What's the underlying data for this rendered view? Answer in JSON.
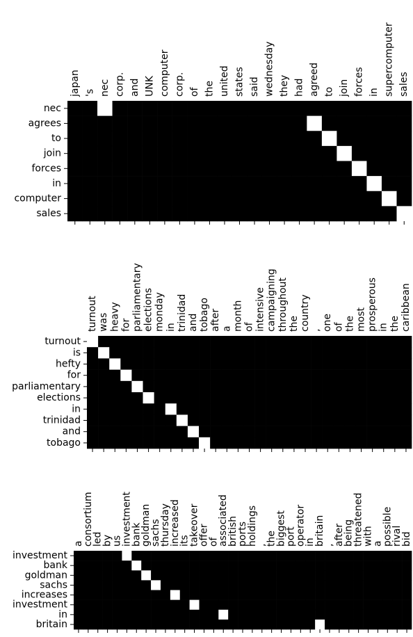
{
  "chart_data": [
    {
      "type": "heatmap",
      "x_categories": [
        "japan",
        "'s",
        "nec",
        "corp.",
        "and",
        "UNK",
        "computer",
        "corp.",
        "of",
        "the",
        "united",
        "states",
        "said",
        "wednesday",
        "they",
        "had",
        "agreed",
        "to",
        "join",
        "forces",
        "in",
        "supercomputer",
        "sales"
      ],
      "y_categories": [
        "nec",
        "agrees",
        "to",
        "join",
        "forces",
        "in",
        "computer",
        "sales"
      ],
      "colors": [
        "#000000",
        "#ffffff"
      ],
      "values": [
        [
          0,
          0,
          1,
          0,
          0,
          0,
          0,
          0,
          0,
          0,
          0,
          0,
          0,
          0,
          0,
          0,
          0,
          0,
          0,
          0,
          0,
          0,
          0
        ],
        [
          0,
          0,
          0,
          0,
          0,
          0,
          0,
          0,
          0,
          0,
          0,
          0,
          0,
          0,
          0,
          0,
          1,
          0,
          0,
          0,
          0,
          0,
          0
        ],
        [
          0,
          0,
          0,
          0,
          0,
          0,
          0,
          0,
          0,
          0,
          0,
          0,
          0,
          0,
          0,
          0,
          0,
          1,
          0,
          0,
          0,
          0,
          0
        ],
        [
          0,
          0,
          0,
          0,
          0,
          0,
          0,
          0,
          0,
          0,
          0,
          0,
          0,
          0,
          0,
          0,
          0,
          0,
          1,
          0,
          0,
          0,
          0
        ],
        [
          0,
          0,
          0,
          0,
          0,
          0,
          0,
          0,
          0,
          0,
          0,
          0,
          0,
          0,
          0,
          0,
          0,
          0,
          0,
          1,
          0,
          0,
          0
        ],
        [
          0,
          0,
          0,
          0,
          0,
          0,
          0,
          0,
          0,
          0,
          0,
          0,
          0,
          0,
          0,
          0,
          0,
          0,
          0,
          0,
          1,
          0,
          0
        ],
        [
          0,
          0,
          0,
          0,
          0,
          0,
          0,
          0,
          0,
          0,
          0,
          0,
          0,
          0,
          0,
          0,
          0,
          0,
          0,
          0,
          0,
          1,
          0
        ],
        [
          0,
          0,
          0,
          0,
          0,
          0,
          0,
          0,
          0,
          0,
          0,
          0,
          0,
          0,
          0,
          0,
          0,
          0,
          0,
          0,
          0,
          0,
          1
        ]
      ]
    },
    {
      "type": "heatmap",
      "x_categories": [
        "turnout",
        "was",
        "heavy",
        "for",
        "parliamentary",
        "elections",
        "monday",
        "in",
        "trinidad",
        "and",
        "tobago",
        "after",
        "a",
        "month",
        "of",
        "intensive",
        "campaigning",
        "throughout",
        "the",
        "country",
        ",",
        "one",
        "of",
        "the",
        "most",
        "prosperous",
        "in",
        "the",
        "caribbean"
      ],
      "y_categories": [
        "turnout",
        "is",
        "hefty",
        "for",
        "parliamentary",
        "elections",
        "in",
        "trinidad",
        "and",
        "tobago"
      ],
      "colors": [
        "#000000",
        "#ffffff"
      ],
      "values": [
        [
          1,
          0,
          0,
          0,
          0,
          0,
          0,
          0,
          0,
          0,
          0,
          0,
          0,
          0,
          0,
          0,
          0,
          0,
          0,
          0,
          0,
          0,
          0,
          0,
          0,
          0,
          0,
          0,
          0
        ],
        [
          0,
          1,
          0,
          0,
          0,
          0,
          0,
          0,
          0,
          0,
          0,
          0,
          0,
          0,
          0,
          0,
          0,
          0,
          0,
          0,
          0,
          0,
          0,
          0,
          0,
          0,
          0,
          0,
          0
        ],
        [
          0,
          0,
          1,
          0,
          0,
          0,
          0,
          0,
          0,
          0,
          0,
          0,
          0,
          0,
          0,
          0,
          0,
          0,
          0,
          0,
          0,
          0,
          0,
          0,
          0,
          0,
          0,
          0,
          0
        ],
        [
          0,
          0,
          0,
          1,
          0,
          0,
          0,
          0,
          0,
          0,
          0,
          0,
          0,
          0,
          0,
          0,
          0,
          0,
          0,
          0,
          0,
          0,
          0,
          0,
          0,
          0,
          0,
          0,
          0
        ],
        [
          0,
          0,
          0,
          0,
          1,
          0,
          0,
          0,
          0,
          0,
          0,
          0,
          0,
          0,
          0,
          0,
          0,
          0,
          0,
          0,
          0,
          0,
          0,
          0,
          0,
          0,
          0,
          0,
          0
        ],
        [
          0,
          0,
          0,
          0,
          0,
          1,
          0,
          0,
          0,
          0,
          0,
          0,
          0,
          0,
          0,
          0,
          0,
          0,
          0,
          0,
          0,
          0,
          0,
          0,
          0,
          0,
          0,
          0,
          0
        ],
        [
          0,
          0,
          0,
          0,
          0,
          0,
          0,
          1,
          0,
          0,
          0,
          0,
          0,
          0,
          0,
          0,
          0,
          0,
          0,
          0,
          0,
          0,
          0,
          0,
          0,
          0,
          0,
          0,
          0
        ],
        [
          0,
          0,
          0,
          0,
          0,
          0,
          0,
          0,
          1,
          0,
          0,
          0,
          0,
          0,
          0,
          0,
          0,
          0,
          0,
          0,
          0,
          0,
          0,
          0,
          0,
          0,
          0,
          0,
          0
        ],
        [
          0,
          0,
          0,
          0,
          0,
          0,
          0,
          0,
          0,
          1,
          0,
          0,
          0,
          0,
          0,
          0,
          0,
          0,
          0,
          0,
          0,
          0,
          0,
          0,
          0,
          0,
          0,
          0,
          0
        ],
        [
          0,
          0,
          0,
          0,
          0,
          0,
          0,
          0,
          0,
          0,
          1,
          0,
          0,
          0,
          0,
          0,
          0,
          0,
          0,
          0,
          0,
          0,
          0,
          0,
          0,
          0,
          0,
          0,
          0
        ]
      ]
    },
    {
      "type": "heatmap",
      "x_categories": [
        "a",
        "consortium",
        "led",
        "by",
        "us",
        "investment",
        "bank",
        "goldman",
        "sachs",
        "thursday",
        "increased",
        "its",
        "takeover",
        "offer",
        "of",
        "associated",
        "british",
        "ports",
        "holdings",
        ",",
        "the",
        "biggest",
        "port",
        "operator",
        "in",
        "britain",
        ",",
        "after",
        "being",
        "threatened",
        "with",
        "a",
        "possible",
        "rival",
        "bid"
      ],
      "y_categories": [
        "investment",
        "bank",
        "goldman",
        "sachs",
        "increases",
        "investment",
        "in",
        "britain"
      ],
      "colors": [
        "#000000",
        "#ffffff"
      ],
      "values": [
        [
          0,
          0,
          0,
          0,
          0,
          1,
          0,
          0,
          0,
          0,
          0,
          0,
          0,
          0,
          0,
          0,
          0,
          0,
          0,
          0,
          0,
          0,
          0,
          0,
          0,
          0,
          0,
          0,
          0,
          0,
          0,
          0,
          0,
          0,
          0
        ],
        [
          0,
          0,
          0,
          0,
          0,
          0,
          1,
          0,
          0,
          0,
          0,
          0,
          0,
          0,
          0,
          0,
          0,
          0,
          0,
          0,
          0,
          0,
          0,
          0,
          0,
          0,
          0,
          0,
          0,
          0,
          0,
          0,
          0,
          0,
          0
        ],
        [
          0,
          0,
          0,
          0,
          0,
          0,
          0,
          1,
          0,
          0,
          0,
          0,
          0,
          0,
          0,
          0,
          0,
          0,
          0,
          0,
          0,
          0,
          0,
          0,
          0,
          0,
          0,
          0,
          0,
          0,
          0,
          0,
          0,
          0,
          0
        ],
        [
          0,
          0,
          0,
          0,
          0,
          0,
          0,
          0,
          1,
          0,
          0,
          0,
          0,
          0,
          0,
          0,
          0,
          0,
          0,
          0,
          0,
          0,
          0,
          0,
          0,
          0,
          0,
          0,
          0,
          0,
          0,
          0,
          0,
          0,
          0
        ],
        [
          0,
          0,
          0,
          0,
          0,
          0,
          0,
          0,
          0,
          0,
          1,
          0,
          0,
          0,
          0,
          0,
          0,
          0,
          0,
          0,
          0,
          0,
          0,
          0,
          0,
          0,
          0,
          0,
          0,
          0,
          0,
          0,
          0,
          0,
          0
        ],
        [
          0,
          0,
          0,
          0,
          0,
          0,
          0,
          0,
          0,
          0,
          0,
          0,
          1,
          0,
          0,
          0,
          0,
          0,
          0,
          0,
          0,
          0,
          0,
          0,
          0,
          0,
          0,
          0,
          0,
          0,
          0,
          0,
          0,
          0,
          0
        ],
        [
          0,
          0,
          0,
          0,
          0,
          0,
          0,
          0,
          0,
          0,
          0,
          0,
          0,
          0,
          0,
          1,
          0,
          0,
          0,
          0,
          0,
          0,
          0,
          0,
          0,
          0,
          0,
          0,
          0,
          0,
          0,
          0,
          0,
          0,
          0
        ],
        [
          0,
          0,
          0,
          0,
          0,
          0,
          0,
          0,
          0,
          0,
          0,
          0,
          0,
          0,
          0,
          0,
          0,
          0,
          0,
          0,
          0,
          0,
          0,
          0,
          0,
          1,
          0,
          0,
          0,
          0,
          0,
          0,
          0,
          0,
          0
        ]
      ]
    }
  ]
}
